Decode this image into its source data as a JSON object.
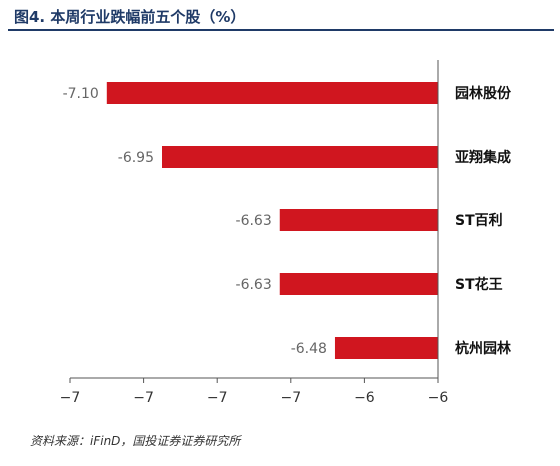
{
  "header": {
    "title": "图4. 本周行业跌幅前五个股（%）"
  },
  "source": "资料来源：iFinD，国投证券证券研究所",
  "chart_data": {
    "type": "bar",
    "orientation": "horizontal",
    "title": "图4. 本周行业跌幅前五个股（%）",
    "categories": [
      "园林股份",
      "亚翔集成",
      "ST百利",
      "ST花王",
      "杭州园林"
    ],
    "values": [
      -7.1,
      -6.95,
      -6.63,
      -6.63,
      -6.48
    ],
    "value_labels": [
      "-7.10",
      "-6.95",
      "-6.63",
      "-6.63",
      "-6.48"
    ],
    "xlim": [
      -7.2,
      -6.2
    ],
    "x_ticks": [
      -7.2,
      -7.0,
      -6.8,
      -6.6,
      -6.4,
      -6.2
    ],
    "x_tick_labels": [
      "−7",
      "−7",
      "−7",
      "−7",
      "−6",
      "−6"
    ],
    "bar_color": "#d0161f",
    "grid": false,
    "legend": "none"
  }
}
